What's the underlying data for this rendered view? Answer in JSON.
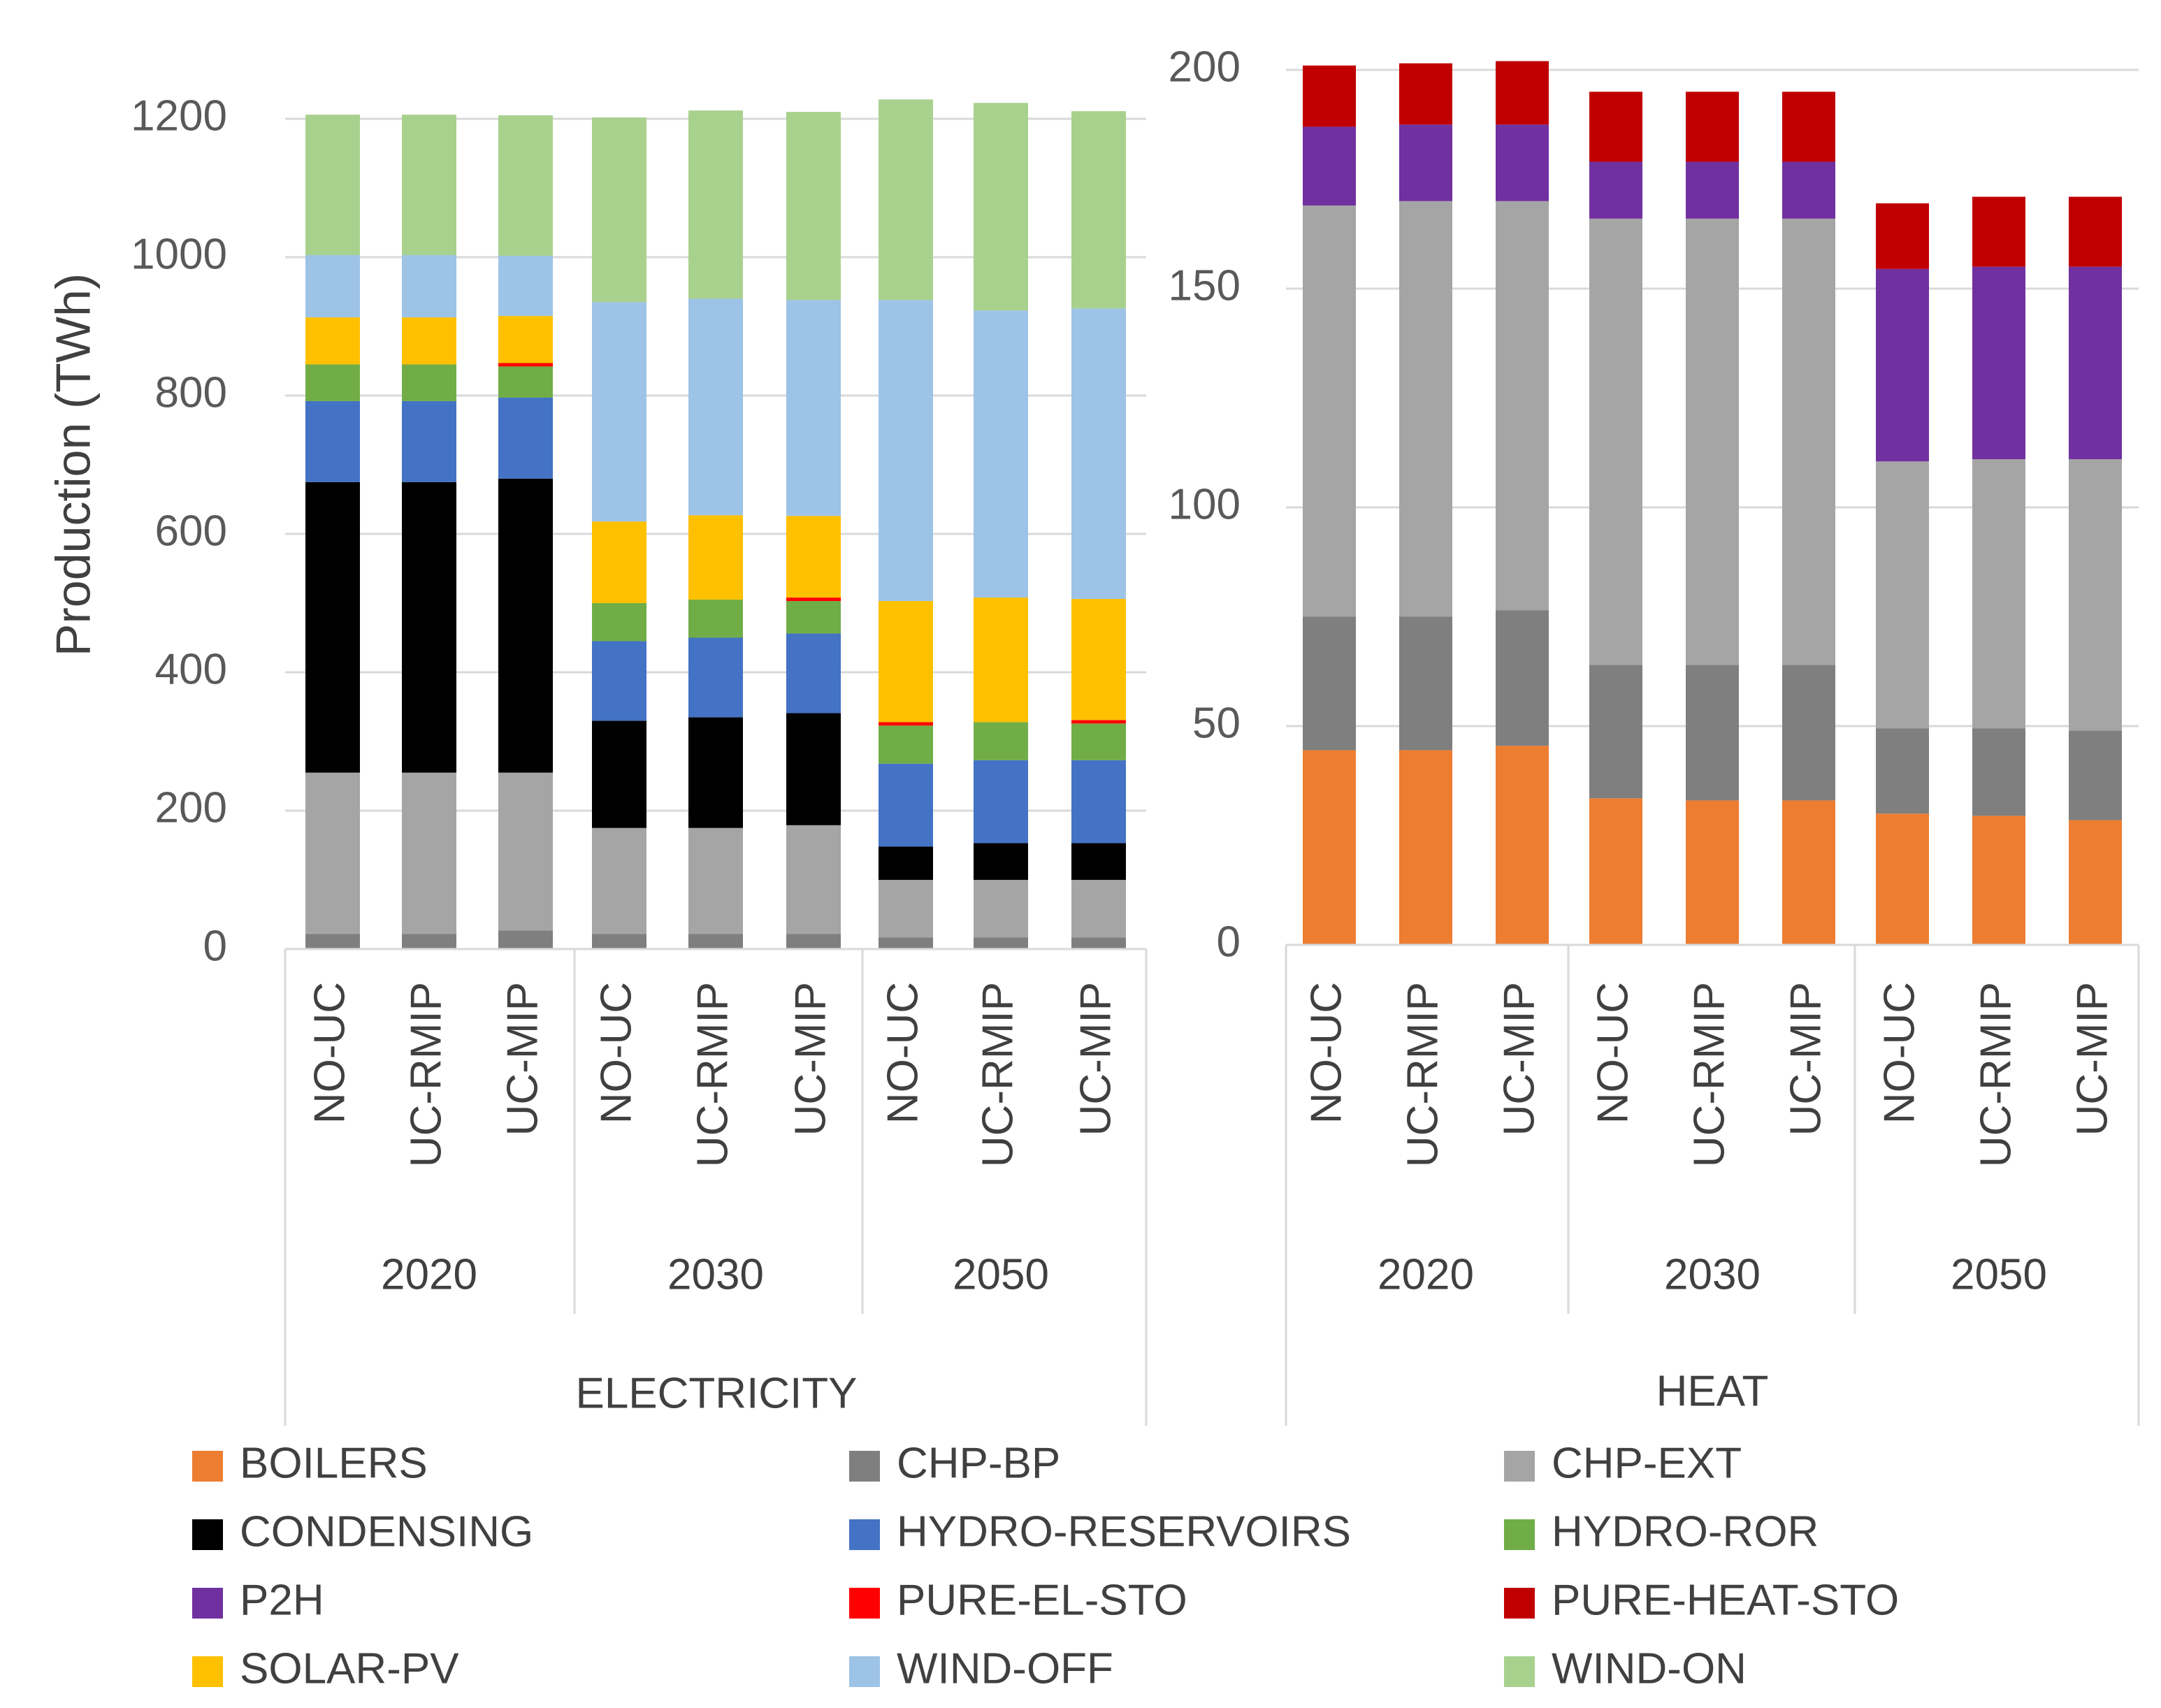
{
  "colors": {
    "BOILERS": "#ED7D31",
    "CHP-BP": "#7F7F7F",
    "CHP-EXT": "#A5A5A5",
    "CONDENSING": "#000000",
    "HYDRO-RESERVOIRS": "#4472C4",
    "HYDRO-ROR": "#70AD47",
    "P2H": "#7030A0",
    "PURE-EL-STO": "#FF0000",
    "PURE-HEAT-STO": "#C00000",
    "SOLAR-PV": "#FFC000",
    "WIND-OFF": "#9DC3E6",
    "WIND-ON": "#A9D18E"
  },
  "legend": [
    "BOILERS",
    "CHP-BP",
    "CHP-EXT",
    "CONDENSING",
    "HYDRO-RESERVOIRS",
    "HYDRO-ROR",
    "P2H",
    "PURE-EL-STO",
    "PURE-HEAT-STO",
    "SOLAR-PV",
    "WIND-OFF",
    "WIND-ON"
  ],
  "chart_data": [
    {
      "type": "bar",
      "stacked": true,
      "panel": "ELECTRICITY",
      "ylabel": "Production (TWh)",
      "ylim": [
        0,
        1200
      ],
      "yticks": [
        0,
        200,
        400,
        600,
        800,
        1000,
        1200
      ],
      "years": [
        "2020",
        "2030",
        "2050"
      ],
      "categories": [
        "NO-UC",
        "UC-RMIP",
        "UC-MIP",
        "NO-UC",
        "UC-RMIP",
        "UC-MIP",
        "NO-UC",
        "UC-RMIP",
        "UC-MIP"
      ],
      "series": [
        {
          "name": "CHP-BP",
          "values": [
            22,
            22,
            27,
            22,
            22,
            22,
            17,
            17,
            17
          ]
        },
        {
          "name": "CHP-EXT",
          "values": [
            233,
            233,
            228,
            153,
            153,
            157,
            83,
            83,
            83
          ]
        },
        {
          "name": "CONDENSING",
          "values": [
            420,
            420,
            425,
            155,
            160,
            162,
            48,
            53,
            53
          ]
        },
        {
          "name": "HYDRO-RESERVOIRS",
          "values": [
            117,
            117,
            117,
            115,
            115,
            115,
            120,
            120,
            120
          ]
        },
        {
          "name": "HYDRO-ROR",
          "values": [
            53,
            53,
            45,
            55,
            55,
            47,
            55,
            55,
            53
          ]
        },
        {
          "name": "PURE-EL-STO",
          "values": [
            0,
            0,
            5,
            0,
            0,
            5,
            5,
            0,
            5
          ]
        },
        {
          "name": "SOLAR-PV",
          "values": [
            68,
            68,
            68,
            118,
            122,
            118,
            175,
            180,
            175
          ]
        },
        {
          "name": "WIND-OFF",
          "values": [
            90,
            90,
            87,
            317,
            313,
            312,
            435,
            415,
            420
          ]
        },
        {
          "name": "WIND-ON",
          "values": [
            203,
            203,
            203,
            267,
            272,
            272,
            290,
            300,
            285
          ]
        }
      ]
    },
    {
      "type": "bar",
      "stacked": true,
      "panel": "HEAT",
      "ylabel": "",
      "ylim": [
        0,
        200
      ],
      "yticks": [
        0,
        50,
        100,
        150,
        200
      ],
      "years": [
        "2020",
        "2030",
        "2050"
      ],
      "categories": [
        "NO-UC",
        "UC-RMIP",
        "UC-MIP",
        "NO-UC",
        "UC-RMIP",
        "UC-MIP",
        "NO-UC",
        "UC-RMIP",
        "UC-MIP"
      ],
      "series": [
        {
          "name": "BOILERS",
          "values": [
            44.5,
            44.5,
            45.5,
            33.5,
            33,
            33,
            30,
            29.5,
            28.5
          ]
        },
        {
          "name": "CHP-BP",
          "values": [
            30.5,
            30.5,
            31,
            30.5,
            31,
            31,
            19.5,
            20,
            20.5
          ]
        },
        {
          "name": "CHP-EXT",
          "values": [
            94,
            95,
            93.5,
            102,
            102,
            102,
            61,
            61.5,
            62
          ]
        },
        {
          "name": "P2H",
          "values": [
            18,
            17.5,
            17.5,
            13,
            13,
            13,
            44,
            44,
            44
          ]
        },
        {
          "name": "PURE-HEAT-STO",
          "values": [
            14,
            14,
            14.5,
            16,
            16,
            16,
            15,
            16,
            16
          ]
        }
      ]
    }
  ]
}
